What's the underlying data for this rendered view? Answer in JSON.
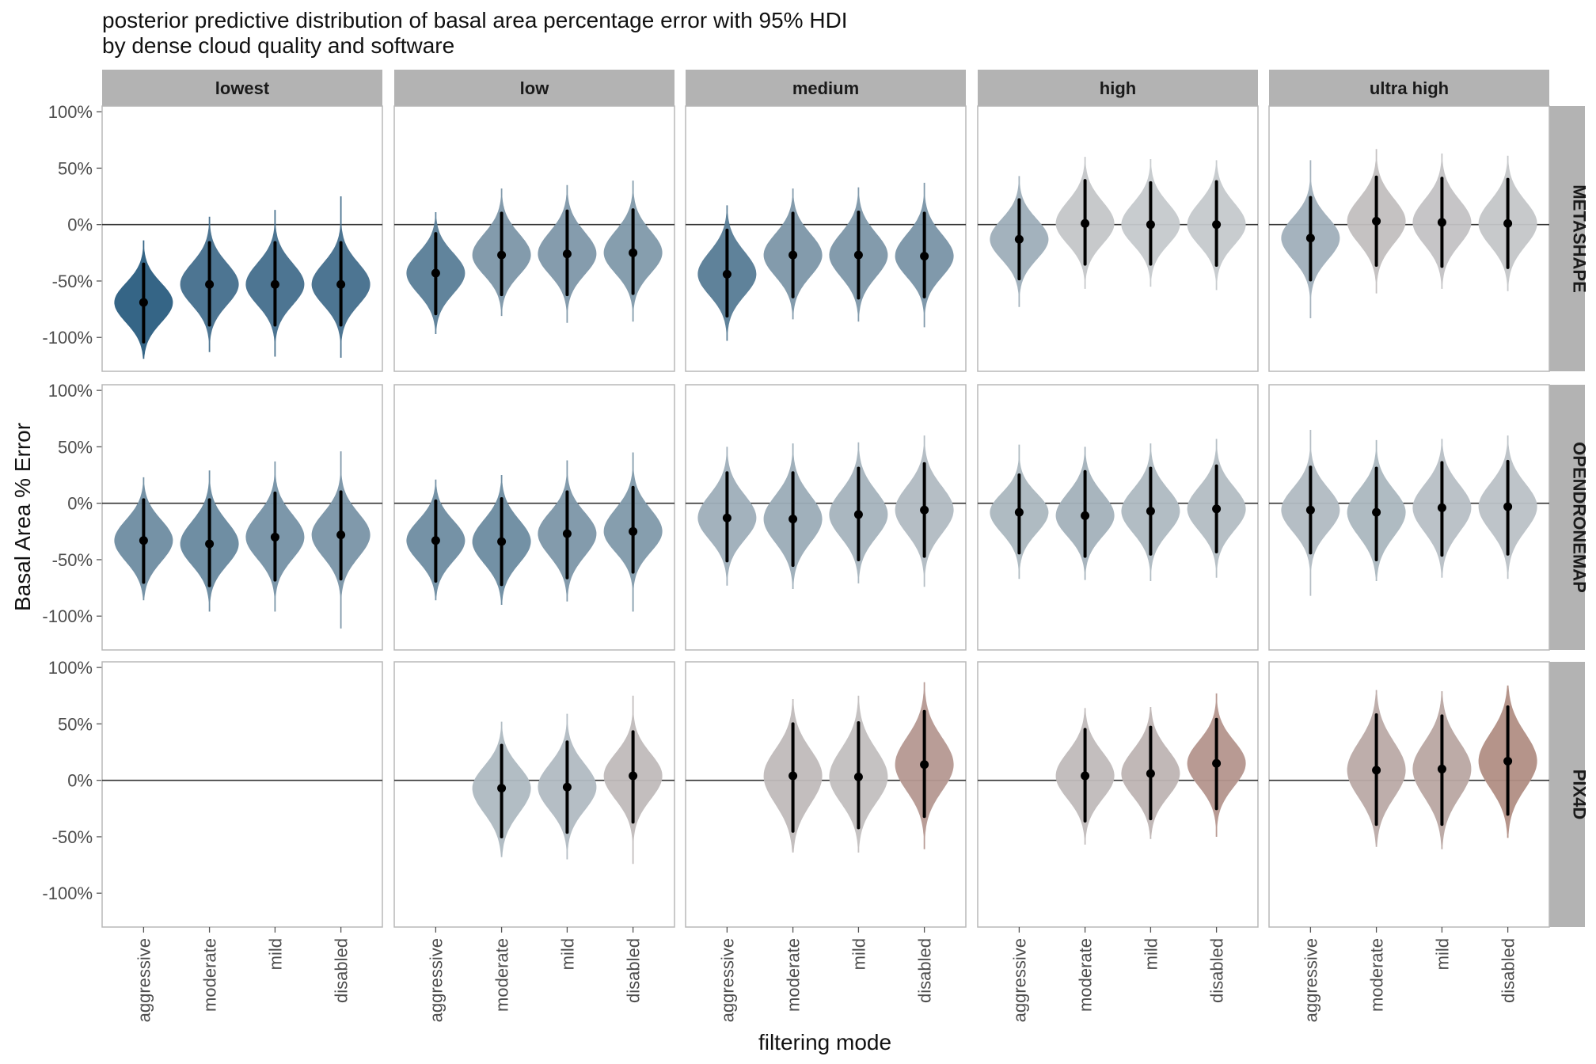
{
  "chart_data": {
    "type": "violin",
    "title": "posterior predictive distribution of basal area percentage error with 95% HDI",
    "subtitle": "by dense cloud quality and software",
    "xlabel": "filtering mode",
    "ylabel": "Basal Area % Error",
    "x_categories": [
      "aggressive",
      "moderate",
      "mild",
      "disabled"
    ],
    "y_ticks": [
      100,
      50,
      0,
      -50,
      -100
    ],
    "y_tick_labels": [
      "100%",
      "50%",
      "0%",
      "-50%",
      "-100%"
    ],
    "ylim": [
      -130,
      105
    ],
    "reference_line_y": 0,
    "column_facets": [
      "lowest",
      "low",
      "medium",
      "high",
      "ultra high"
    ],
    "row_facets": [
      "METASHAPE",
      "OPENDRONEMAP",
      "PIX4D"
    ],
    "panels": [
      {
        "row": "METASHAPE",
        "col": "lowest",
        "points": [
          {
            "x": "aggressive",
            "median": -69,
            "hdi_low": -104,
            "hdi_high": -35,
            "min": -119,
            "max": -14
          },
          {
            "x": "moderate",
            "median": -53,
            "hdi_low": -89,
            "hdi_high": -16,
            "min": -113,
            "max": 7
          },
          {
            "x": "mild",
            "median": -53,
            "hdi_low": -89,
            "hdi_high": -16,
            "min": -117,
            "max": 13
          },
          {
            "x": "disabled",
            "median": -53,
            "hdi_low": -89,
            "hdi_high": -16,
            "min": -118,
            "max": 25
          }
        ]
      },
      {
        "row": "METASHAPE",
        "col": "low",
        "points": [
          {
            "x": "aggressive",
            "median": -43,
            "hdi_low": -79,
            "hdi_high": -8,
            "min": -97,
            "max": 11
          },
          {
            "x": "moderate",
            "median": -27,
            "hdi_low": -62,
            "hdi_high": 10,
            "min": -81,
            "max": 32
          },
          {
            "x": "mild",
            "median": -26,
            "hdi_low": -62,
            "hdi_high": 12,
            "min": -87,
            "max": 35
          },
          {
            "x": "disabled",
            "median": -25,
            "hdi_low": -61,
            "hdi_high": 13,
            "min": -86,
            "max": 39
          }
        ]
      },
      {
        "row": "METASHAPE",
        "col": "medium",
        "points": [
          {
            "x": "aggressive",
            "median": -44,
            "hdi_low": -81,
            "hdi_high": -5,
            "min": -103,
            "max": 17
          },
          {
            "x": "moderate",
            "median": -27,
            "hdi_low": -64,
            "hdi_high": 10,
            "min": -84,
            "max": 32
          },
          {
            "x": "mild",
            "median": -27,
            "hdi_low": -65,
            "hdi_high": 11,
            "min": -86,
            "max": 33
          },
          {
            "x": "disabled",
            "median": -28,
            "hdi_low": -64,
            "hdi_high": 10,
            "min": -91,
            "max": 37
          }
        ]
      },
      {
        "row": "METASHAPE",
        "col": "high",
        "points": [
          {
            "x": "aggressive",
            "median": -13,
            "hdi_low": -48,
            "hdi_high": 22,
            "min": -73,
            "max": 43
          },
          {
            "x": "moderate",
            "median": 1,
            "hdi_low": -35,
            "hdi_high": 39,
            "min": -57,
            "max": 60
          },
          {
            "x": "mild",
            "median": 0,
            "hdi_low": -35,
            "hdi_high": 37,
            "min": -55,
            "max": 58
          },
          {
            "x": "disabled",
            "median": 0,
            "hdi_low": -36,
            "hdi_high": 38,
            "min": -58,
            "max": 57
          }
        ]
      },
      {
        "row": "METASHAPE",
        "col": "ultra high",
        "points": [
          {
            "x": "aggressive",
            "median": -12,
            "hdi_low": -49,
            "hdi_high": 24,
            "min": -83,
            "max": 57
          },
          {
            "x": "moderate",
            "median": 3,
            "hdi_low": -36,
            "hdi_high": 42,
            "min": -61,
            "max": 67
          },
          {
            "x": "mild",
            "median": 2,
            "hdi_low": -37,
            "hdi_high": 41,
            "min": -57,
            "max": 63
          },
          {
            "x": "disabled",
            "median": 1,
            "hdi_low": -38,
            "hdi_high": 40,
            "min": -59,
            "max": 61
          }
        ]
      },
      {
        "row": "OPENDRONEMAP",
        "col": "lowest",
        "points": [
          {
            "x": "aggressive",
            "median": -33,
            "hdi_low": -70,
            "hdi_high": 3,
            "min": -86,
            "max": 23
          },
          {
            "x": "moderate",
            "median": -36,
            "hdi_low": -73,
            "hdi_high": 3,
            "min": -96,
            "max": 29
          },
          {
            "x": "mild",
            "median": -30,
            "hdi_low": -68,
            "hdi_high": 9,
            "min": -96,
            "max": 37
          },
          {
            "x": "disabled",
            "median": -28,
            "hdi_low": -67,
            "hdi_high": 10,
            "min": -111,
            "max": 46
          }
        ]
      },
      {
        "row": "OPENDRONEMAP",
        "col": "low",
        "points": [
          {
            "x": "aggressive",
            "median": -33,
            "hdi_low": -69,
            "hdi_high": 2,
            "min": -86,
            "max": 21
          },
          {
            "x": "moderate",
            "median": -34,
            "hdi_low": -72,
            "hdi_high": 4,
            "min": -90,
            "max": 25
          },
          {
            "x": "mild",
            "median": -27,
            "hdi_low": -66,
            "hdi_high": 10,
            "min": -87,
            "max": 38
          },
          {
            "x": "disabled",
            "median": -25,
            "hdi_low": -61,
            "hdi_high": 14,
            "min": -96,
            "max": 45
          }
        ]
      },
      {
        "row": "OPENDRONEMAP",
        "col": "medium",
        "points": [
          {
            "x": "aggressive",
            "median": -13,
            "hdi_low": -51,
            "hdi_high": 27,
            "min": -73,
            "max": 50
          },
          {
            "x": "moderate",
            "median": -14,
            "hdi_low": -55,
            "hdi_high": 27,
            "min": -76,
            "max": 53
          },
          {
            "x": "mild",
            "median": -10,
            "hdi_low": -50,
            "hdi_high": 31,
            "min": -71,
            "max": 54
          },
          {
            "x": "disabled",
            "median": -6,
            "hdi_low": -47,
            "hdi_high": 35,
            "min": -74,
            "max": 60
          }
        ]
      },
      {
        "row": "OPENDRONEMAP",
        "col": "high",
        "points": [
          {
            "x": "aggressive",
            "median": -8,
            "hdi_low": -44,
            "hdi_high": 25,
            "min": -67,
            "max": 52
          },
          {
            "x": "moderate",
            "median": -11,
            "hdi_low": -47,
            "hdi_high": 28,
            "min": -68,
            "max": 50
          },
          {
            "x": "mild",
            "median": -7,
            "hdi_low": -45,
            "hdi_high": 31,
            "min": -69,
            "max": 53
          },
          {
            "x": "disabled",
            "median": -5,
            "hdi_low": -43,
            "hdi_high": 33,
            "min": -66,
            "max": 57
          }
        ]
      },
      {
        "row": "OPENDRONEMAP",
        "col": "ultra high",
        "points": [
          {
            "x": "aggressive",
            "median": -6,
            "hdi_low": -44,
            "hdi_high": 32,
            "min": -82,
            "max": 65
          },
          {
            "x": "moderate",
            "median": -8,
            "hdi_low": -50,
            "hdi_high": 31,
            "min": -69,
            "max": 56
          },
          {
            "x": "mild",
            "median": -4,
            "hdi_low": -46,
            "hdi_high": 36,
            "min": -66,
            "max": 57
          },
          {
            "x": "disabled",
            "median": -3,
            "hdi_low": -45,
            "hdi_high": 37,
            "min": -67,
            "max": 60
          }
        ]
      },
      {
        "row": "PIX4D",
        "col": "lowest",
        "points": []
      },
      {
        "row": "PIX4D",
        "col": "low",
        "points": [
          {
            "x": "moderate",
            "median": -7,
            "hdi_low": -50,
            "hdi_high": 31,
            "min": -68,
            "max": 52
          },
          {
            "x": "mild",
            "median": -6,
            "hdi_low": -46,
            "hdi_high": 34,
            "min": -70,
            "max": 59
          },
          {
            "x": "disabled",
            "median": 4,
            "hdi_low": -37,
            "hdi_high": 43,
            "min": -74,
            "max": 75
          }
        ]
      },
      {
        "row": "PIX4D",
        "col": "medium",
        "points": [
          {
            "x": "moderate",
            "median": 4,
            "hdi_low": -45,
            "hdi_high": 50,
            "min": -64,
            "max": 72
          },
          {
            "x": "mild",
            "median": 3,
            "hdi_low": -42,
            "hdi_high": 51,
            "min": -64,
            "max": 75
          },
          {
            "x": "disabled",
            "median": 14,
            "hdi_low": -32,
            "hdi_high": 61,
            "min": -61,
            "max": 87
          }
        ]
      },
      {
        "row": "PIX4D",
        "col": "high",
        "points": [
          {
            "x": "moderate",
            "median": 4,
            "hdi_low": -36,
            "hdi_high": 45,
            "min": -57,
            "max": 64
          },
          {
            "x": "mild",
            "median": 6,
            "hdi_low": -34,
            "hdi_high": 47,
            "min": -52,
            "max": 65
          },
          {
            "x": "disabled",
            "median": 15,
            "hdi_low": -25,
            "hdi_high": 54,
            "min": -50,
            "max": 77
          }
        ]
      },
      {
        "row": "PIX4D",
        "col": "ultra high",
        "points": [
          {
            "x": "moderate",
            "median": 9,
            "hdi_low": -39,
            "hdi_high": 58,
            "min": -59,
            "max": 80
          },
          {
            "x": "mild",
            "median": 10,
            "hdi_low": -39,
            "hdi_high": 57,
            "min": -61,
            "max": 79
          },
          {
            "x": "disabled",
            "median": 17,
            "hdi_low": -30,
            "hdi_high": 65,
            "min": -51,
            "max": 84
          }
        ]
      }
    ],
    "colors": {
      "low_median": "#2a5d80",
      "near_zero": "#c5c9cc",
      "high_median": "#b08a80"
    }
  }
}
